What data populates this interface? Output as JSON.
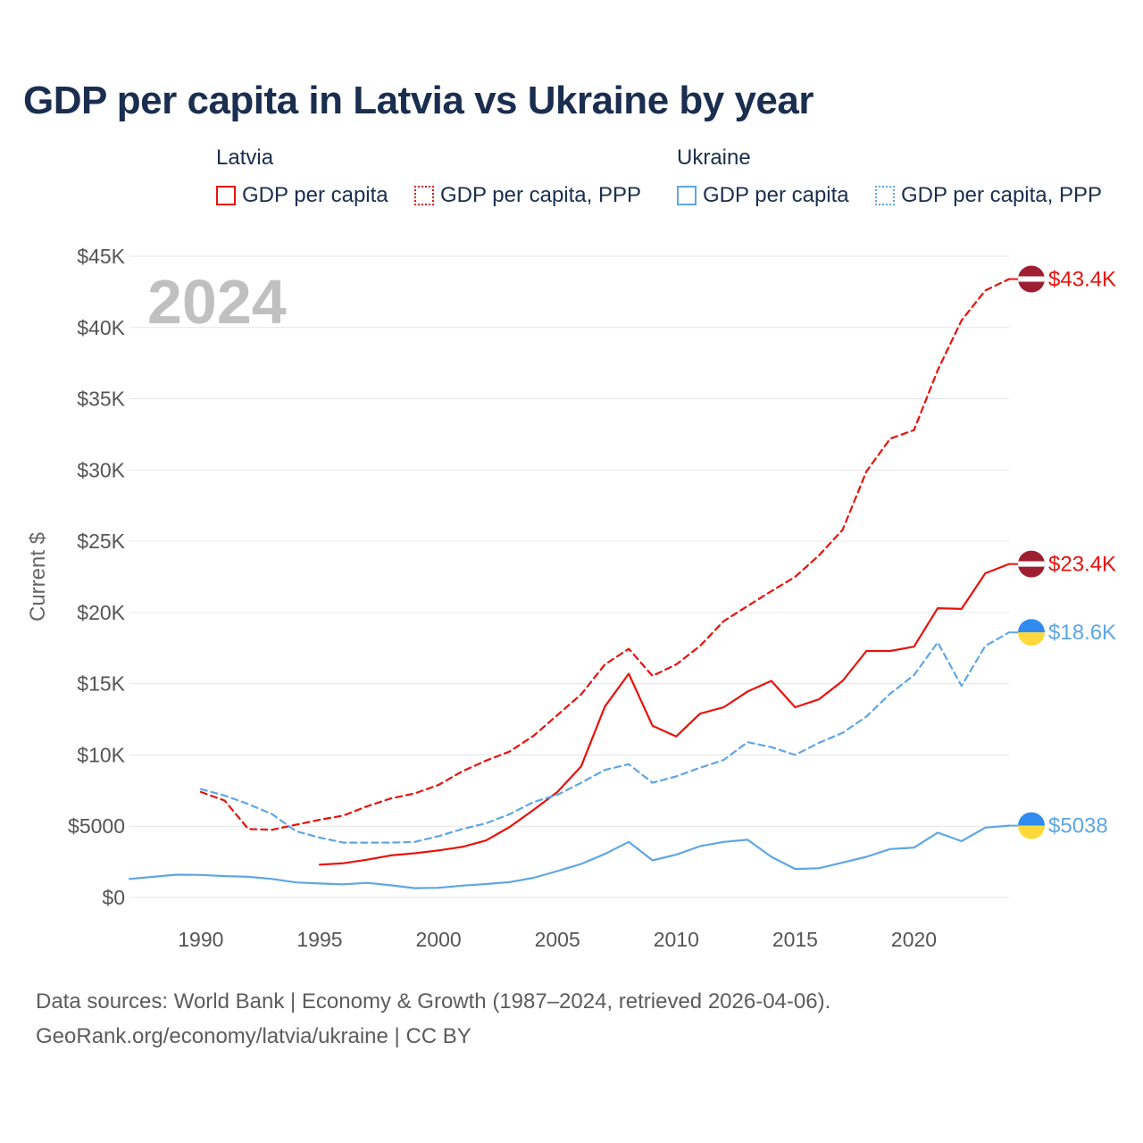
{
  "title": "GDP per capita in Latvia vs Ukraine by year",
  "legend": {
    "groups": [
      {
        "name": "Latvia",
        "items": [
          {
            "label": "GDP per capita",
            "color": "#e8120c",
            "style": "solid"
          },
          {
            "label": "GDP per capita, PPP",
            "color": "#e8120c",
            "style": "dotted"
          }
        ]
      },
      {
        "name": "Ukraine",
        "items": [
          {
            "label": "GDP per capita",
            "color": "#5ea6e6",
            "style": "solid"
          },
          {
            "label": "GDP per capita, PPP",
            "color": "#5ea6e6",
            "style": "dotted"
          }
        ]
      }
    ]
  },
  "footer": {
    "line1": "Data sources: World Bank | Economy & Growth (1987–2024, retrieved 2026-04-06).",
    "line2": "GeoRank.org/economy/latvia/ukraine | CC BY"
  },
  "chart_data": {
    "type": "line",
    "title": "GDP per capita in Latvia vs Ukraine by year",
    "year_label": "2024",
    "ylabel": "Current $",
    "xlabel": "",
    "xlim": [
      1987,
      2024
    ],
    "ylim": [
      0,
      45000
    ],
    "grid": true,
    "xticks": [
      1990,
      1995,
      2000,
      2005,
      2010,
      2015,
      2020
    ],
    "xtick_labels": [
      "1990",
      "1995",
      "2000",
      "2005",
      "2010",
      "2015",
      "2020"
    ],
    "yticks": [
      0,
      5000,
      10000,
      15000,
      20000,
      25000,
      30000,
      35000,
      40000,
      45000
    ],
    "ytick_labels": [
      "$0",
      "$5000",
      "$10K",
      "$15K",
      "$20K",
      "$25K",
      "$30K",
      "$35K",
      "$40K",
      "$45K"
    ],
    "series": [
      {
        "name": "Latvia GDP per capita, PPP",
        "country": "Latvia",
        "color": "#e8120c",
        "dashed": true,
        "end_label": "$43.4K",
        "flag": "latvia",
        "x": [
          1990,
          1991,
          1992,
          1993,
          1994,
          1995,
          1996,
          1997,
          1998,
          1999,
          2000,
          2001,
          2002,
          2003,
          2004,
          2005,
          2006,
          2007,
          2008,
          2009,
          2010,
          2011,
          2012,
          2013,
          2014,
          2015,
          2016,
          2017,
          2018,
          2019,
          2020,
          2021,
          2022,
          2023,
          2024
        ],
        "values": [
          7400,
          6800,
          4800,
          4750,
          5100,
          5450,
          5750,
          6400,
          6950,
          7300,
          7900,
          8850,
          9600,
          10250,
          11350,
          12800,
          14250,
          16350,
          17450,
          15550,
          16350,
          17650,
          19400,
          20450,
          21500,
          22500,
          24000,
          25800,
          29900,
          32200,
          32800,
          37000,
          40500,
          42600,
          43400
        ]
      },
      {
        "name": "Latvia GDP per capita",
        "country": "Latvia",
        "color": "#e8120c",
        "dashed": false,
        "end_label": "$23.4K",
        "flag": "latvia",
        "x": [
          1995,
          1996,
          1997,
          1998,
          1999,
          2000,
          2001,
          2002,
          2003,
          2004,
          2005,
          2006,
          2007,
          2008,
          2009,
          2010,
          2011,
          2012,
          2013,
          2014,
          2015,
          2016,
          2017,
          2018,
          2019,
          2020,
          2021,
          2022,
          2023,
          2024
        ],
        "values": [
          2300,
          2400,
          2650,
          2950,
          3100,
          3300,
          3550,
          4000,
          4950,
          6150,
          7400,
          9200,
          13400,
          15700,
          12050,
          11300,
          12900,
          13350,
          14450,
          15200,
          13350,
          13900,
          15200,
          17300,
          17300,
          17600,
          20300,
          20250,
          22750,
          23400
        ]
      },
      {
        "name": "Ukraine GDP per capita, PPP",
        "country": "Ukraine",
        "color": "#5ea6e6",
        "dashed": true,
        "end_label": "$18.6K",
        "flag": "ukraine",
        "x": [
          1990,
          1991,
          1992,
          1993,
          1994,
          1995,
          1996,
          1997,
          1998,
          1999,
          2000,
          2001,
          2002,
          2003,
          2004,
          2005,
          2006,
          2007,
          2008,
          2009,
          2010,
          2011,
          2012,
          2013,
          2014,
          2015,
          2016,
          2017,
          2018,
          2019,
          2020,
          2021,
          2022,
          2023,
          2024
        ],
        "values": [
          7600,
          7150,
          6550,
          5850,
          4650,
          4200,
          3850,
          3850,
          3850,
          3900,
          4300,
          4800,
          5200,
          5850,
          6700,
          7200,
          8050,
          8950,
          9350,
          8050,
          8500,
          9100,
          9650,
          10900,
          10550,
          10000,
          10850,
          11550,
          12700,
          14300,
          15600,
          17900,
          14850,
          17650,
          18600
        ]
      },
      {
        "name": "Ukraine GDP per capita",
        "country": "Ukraine",
        "color": "#5ea6e6",
        "dashed": false,
        "end_label": "$5038",
        "flag": "ukraine",
        "x": [
          1987,
          1988,
          1989,
          1990,
          1991,
          1992,
          1993,
          1994,
          1995,
          1996,
          1997,
          1998,
          1999,
          2000,
          2001,
          2002,
          2003,
          2004,
          2005,
          2006,
          2007,
          2008,
          2009,
          2010,
          2011,
          2012,
          2013,
          2014,
          2015,
          2016,
          2017,
          2018,
          2019,
          2020,
          2021,
          2022,
          2023,
          2024
        ],
        "values": [
          1300,
          1450,
          1600,
          1580,
          1500,
          1450,
          1300,
          1050,
          980,
          920,
          1020,
          850,
          650,
          680,
          830,
          940,
          1080,
          1380,
          1850,
          2350,
          3050,
          3900,
          2600,
          3000,
          3600,
          3900,
          4050,
          2850,
          2000,
          2050,
          2450,
          2850,
          3400,
          3500,
          4550,
          3950,
          4900,
          5038
        ]
      }
    ]
  }
}
